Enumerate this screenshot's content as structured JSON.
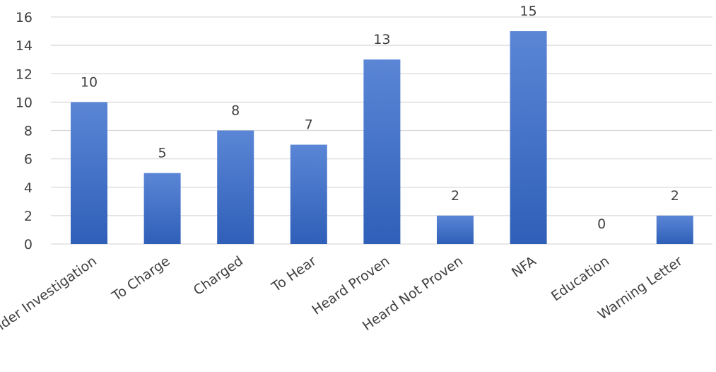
{
  "chart_data": {
    "type": "bar",
    "title": "",
    "xlabel": "",
    "ylabel": "",
    "categories": [
      "Under Investigation",
      "To Charge",
      "Charged",
      "To Hear",
      "Heard Proven",
      "Heard Not Proven",
      "NFA",
      "Education",
      "Warning Letter"
    ],
    "values": [
      10,
      5,
      8,
      7,
      13,
      2,
      15,
      0,
      2
    ],
    "ylim": [
      0,
      16
    ],
    "yticks": [
      0,
      2,
      4,
      6,
      8,
      10,
      12,
      14,
      16
    ],
    "grid": true,
    "legend": "none",
    "data_labels": true,
    "bar_color": "#4472c4",
    "bar_color_light": "#5b86d6",
    "bar_color_dark": "#2f5fb8"
  }
}
